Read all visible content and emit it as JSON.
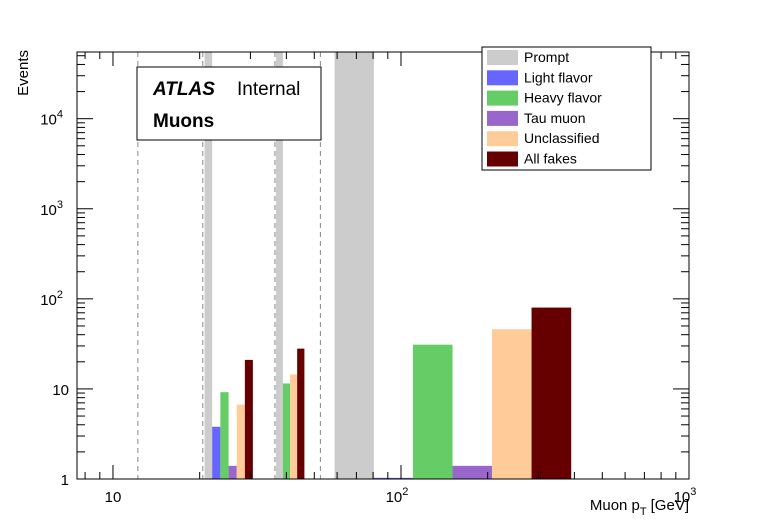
{
  "chart_data": {
    "type": "bar",
    "x_scale": "log",
    "y_scale": "log",
    "xlim": [
      7.5,
      1000
    ],
    "ylim": [
      1,
      55000
    ],
    "xlabel": "Muon p",
    "xlabel_sub": "T",
    "xlabel_unit": "[GeV]",
    "ylabel": "Events",
    "x_ticks": [
      {
        "value": 10,
        "label": "10"
      },
      {
        "value": 100,
        "label": "10",
        "sup": "2"
      },
      {
        "value": 1000,
        "label": "10",
        "sup": "3"
      }
    ],
    "y_ticks": [
      {
        "value": 1,
        "label": "1"
      },
      {
        "value": 10,
        "label": "10"
      },
      {
        "value": 100,
        "label": "10",
        "sup": "2"
      },
      {
        "value": 1000,
        "label": "10",
        "sup": "3"
      },
      {
        "value": 10000,
        "label": "10",
        "sup": "4"
      }
    ],
    "bin_edges": [
      12.2,
      20.5,
      36.5,
      52.5
    ],
    "atlas_label": "ATLAS",
    "atlas_status": "Internal",
    "region_label": "Muons",
    "series": [
      {
        "name": "Prompt",
        "color": "#cccccc",
        "bars": [
          {
            "x0": 20.8,
            "x1": 22.1,
            "value": 55000
          },
          {
            "x0": 36.8,
            "x1": 38.9,
            "value": 55000
          },
          {
            "x0": 58.8,
            "x1": 80.5,
            "value": 55000
          }
        ]
      },
      {
        "name": "Light flavor",
        "color": "#6666ff",
        "bars": [
          {
            "x0": 22.1,
            "x1": 23.6,
            "value": 3.8
          },
          {
            "x0": 80.5,
            "x1": 110,
            "value": 1.03
          }
        ]
      },
      {
        "name": "Heavy flavor",
        "color": "#66cc66",
        "bars": [
          {
            "x0": 23.6,
            "x1": 25.2,
            "value": 9.2
          },
          {
            "x0": 38.9,
            "x1": 41.2,
            "value": 11.5
          },
          {
            "x0": 110,
            "x1": 151,
            "value": 31
          }
        ]
      },
      {
        "name": "Tau muon",
        "color": "#9966cc",
        "bars": [
          {
            "x0": 25.2,
            "x1": 26.9,
            "value": 1.4
          },
          {
            "x0": 151,
            "x1": 207,
            "value": 1.4
          }
        ]
      },
      {
        "name": "Unclassified",
        "color": "#ffcc99",
        "bars": [
          {
            "x0": 26.9,
            "x1": 28.7,
            "value": 6.7
          },
          {
            "x0": 41.2,
            "x1": 43.6,
            "value": 14.5
          },
          {
            "x0": 207,
            "x1": 284,
            "value": 46
          }
        ]
      },
      {
        "name": "All fakes",
        "color": "#660000",
        "bars": [
          {
            "x0": 28.7,
            "x1": 30.6,
            "value": 21
          },
          {
            "x0": 43.6,
            "x1": 46.2,
            "value": 28
          },
          {
            "x0": 284,
            "x1": 390,
            "value": 80
          }
        ]
      }
    ],
    "legend": {
      "position": "top-right",
      "entries": [
        "Prompt",
        "Light flavor",
        "Heavy flavor",
        "Tau muon",
        "Unclassified",
        "All fakes"
      ]
    }
  }
}
